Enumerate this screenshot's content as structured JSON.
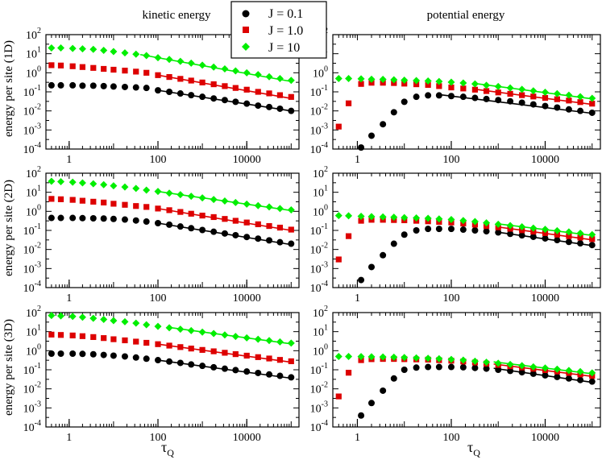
{
  "chart_data": {
    "type": "scatter",
    "layout": "3x2 grid, log-log axes with power-law fit lines",
    "column_titles": [
      "kinetic energy",
      "potential energy"
    ],
    "row_ylabels": [
      "energy per site (1D)",
      "energy per site (2D)",
      "energy per site (3D)"
    ],
    "xlabel": {
      "symbol": "τ",
      "subscript": "Q"
    },
    "x_ticks": [
      1,
      100,
      10000
    ],
    "x_tick_labels": [
      "1",
      "100",
      "10000"
    ],
    "xlim": [
      0.3,
      150000
    ],
    "y_ticks": [
      0.0001,
      0.001,
      0.01,
      0.1,
      1,
      10,
      100
    ],
    "y_tick_labels": [
      {
        "base": "10",
        "exp": "-4"
      },
      {
        "base": "10",
        "exp": "-3"
      },
      {
        "base": "10",
        "exp": "-2"
      },
      {
        "base": "10",
        "exp": "-1"
      },
      {
        "base": "10",
        "exp": "0"
      },
      {
        "base": "10",
        "exp": "1"
      },
      {
        "base": "10",
        "exp": "2"
      }
    ],
    "ylim": [
      0.0001,
      100
    ],
    "legend": {
      "position": "top-center",
      "entries": [
        {
          "label": "J = 0.1",
          "color": "#000000",
          "marker": "circle"
        },
        {
          "label": "J = 1.0",
          "color": "#dd0000",
          "marker": "square"
        },
        {
          "label": "J = 10",
          "color": "#00ee00",
          "marker": "diamond"
        }
      ]
    },
    "x": [
      0.4,
      0.65,
      1.2,
      2,
      3.5,
      6,
      10,
      18,
      32,
      55,
      100,
      180,
      320,
      560,
      1000,
      1800,
      3200,
      5600,
      10000,
      18000,
      32000,
      56000,
      100000
    ],
    "panels": [
      {
        "row": 0,
        "col": 0,
        "series": [
          {
            "name": "J = 0.1",
            "values": [
              0.22,
              0.22,
              0.22,
              0.21,
              0.21,
              0.2,
              0.19,
              0.18,
              0.17,
              0.16,
              0.12,
              0.1,
              0.082,
              0.067,
              0.055,
              0.045,
              0.037,
              0.03,
              0.024,
              0.019,
              0.016,
              0.013,
              0.01
            ],
            "fit": {
              "from": 100,
              "to": 100000,
              "y0": 0.12,
              "y1": 0.01
            }
          },
          {
            "name": "J = 1.0",
            "values": [
              2.5,
              2.4,
              2.2,
              2.0,
              1.8,
              1.6,
              1.45,
              1.3,
              1.15,
              1.0,
              0.75,
              0.6,
              0.48,
              0.39,
              0.31,
              0.25,
              0.2,
              0.16,
              0.13,
              0.1,
              0.083,
              0.067,
              0.054
            ],
            "fit": {
              "from": 100,
              "to": 100000,
              "y0": 0.75,
              "y1": 0.045
            }
          },
          {
            "name": "J = 10",
            "values": [
              20,
              20,
              19,
              18,
              17,
              15,
              13,
              11,
              9.5,
              8,
              6.2,
              5,
              4,
              3.2,
              2.5,
              2.0,
              1.6,
              1.25,
              1.0,
              0.8,
              0.62,
              0.5,
              0.4
            ],
            "fit": {
              "from": 40,
              "to": 100000,
              "y0": 9,
              "y1": 0.35
            }
          }
        ]
      },
      {
        "row": 0,
        "col": 1,
        "series": [
          {
            "name": "J = 0.1",
            "values": [
              null,
              null,
              0.00012,
              0.0005,
              0.002,
              0.0085,
              0.03,
              0.055,
              0.065,
              0.065,
              0.06,
              0.055,
              0.048,
              0.042,
              0.037,
              0.032,
              0.027,
              0.022,
              0.018,
              0.015,
              0.012,
              0.01,
              0.008
            ],
            "fit": {
              "from": 60,
              "to": 100000,
              "y0": 0.07,
              "y1": 0.0075
            }
          },
          {
            "name": "J = 1.0",
            "values": [
              0.0015,
              0.025,
              0.26,
              0.3,
              0.3,
              0.29,
              0.27,
              0.25,
              0.23,
              0.2,
              0.17,
              0.15,
              0.13,
              0.11,
              0.093,
              0.079,
              0.067,
              0.057,
              0.048,
              0.041,
              0.035,
              0.029,
              0.024
            ],
            "fit": {
              "from": 300,
              "to": 100000,
              "y0": 0.14,
              "y1": 0.022
            }
          },
          {
            "name": "J = 10",
            "values": [
              0.5,
              0.5,
              0.48,
              0.46,
              0.45,
              0.43,
              0.41,
              0.39,
              0.37,
              0.35,
              0.32,
              0.29,
              0.26,
              0.22,
              0.19,
              0.16,
              0.135,
              0.113,
              0.095,
              0.08,
              0.067,
              0.056,
              0.046
            ],
            "fit": {
              "from": 300,
              "to": 100000,
              "y0": 0.28,
              "y1": 0.043
            }
          }
        ]
      },
      {
        "row": 1,
        "col": 0,
        "series": [
          {
            "name": "J = 0.1",
            "values": [
              0.45,
              0.45,
              0.45,
              0.44,
              0.43,
              0.42,
              0.4,
              0.37,
              0.33,
              0.29,
              0.24,
              0.2,
              0.16,
              0.13,
              0.105,
              0.085,
              0.069,
              0.056,
              0.045,
              0.037,
              0.03,
              0.024,
              0.02
            ],
            "fit": {
              "from": 100,
              "to": 100000,
              "y0": 0.24,
              "y1": 0.018
            }
          },
          {
            "name": "J = 1.0",
            "values": [
              4.5,
              4.3,
              4.0,
              3.6,
              3.2,
              2.9,
              2.5,
              2.2,
              1.9,
              1.7,
              1.4,
              1.15,
              0.93,
              0.75,
              0.6,
              0.5,
              0.4,
              0.32,
              0.26,
              0.21,
              0.17,
              0.14,
              0.11
            ],
            "fit": {
              "from": 100,
              "to": 100000,
              "y0": 1.4,
              "y1": 0.1
            }
          },
          {
            "name": "J = 10",
            "values": [
              38,
              36,
              34,
              31,
              28,
              25,
              22,
              19,
              16,
              13,
              11,
              9,
              7.5,
              6.2,
              5.1,
              4.2,
              3.5,
              2.9,
              2.4,
              2.0,
              1.7,
              1.4,
              1.2
            ],
            "fit": {
              "from": 100,
              "to": 100000,
              "y0": 11,
              "y1": 1.1
            }
          }
        ]
      },
      {
        "row": 1,
        "col": 1,
        "series": [
          {
            "name": "J = 0.1",
            "values": [
              null,
              null,
              0.00025,
              0.0012,
              0.005,
              0.02,
              0.06,
              0.1,
              0.12,
              0.12,
              0.12,
              0.11,
              0.1,
              0.09,
              0.078,
              0.066,
              0.055,
              0.046,
              0.038,
              0.031,
              0.025,
              0.021,
              0.017
            ],
            "fit": {
              "from": 1000,
              "to": 100000,
              "y0": 0.08,
              "y1": 0.016
            }
          },
          {
            "name": "J = 1.0",
            "values": [
              0.003,
              0.05,
              0.32,
              0.36,
              0.36,
              0.35,
              0.34,
              0.32,
              0.3,
              0.28,
              0.26,
              0.23,
              0.2,
              0.17,
              0.145,
              0.122,
              0.102,
              0.086,
              0.072,
              0.06,
              0.05,
              0.042,
              0.035
            ],
            "fit": {
              "from": 1000,
              "to": 100000,
              "y0": 0.15,
              "y1": 0.032
            }
          },
          {
            "name": "J = 10",
            "values": [
              0.6,
              0.58,
              0.55,
              0.53,
              0.51,
              0.49,
              0.47,
              0.45,
              0.43,
              0.4,
              0.37,
              0.33,
              0.29,
              0.25,
              0.21,
              0.18,
              0.155,
              0.133,
              0.114,
              0.097,
              0.083,
              0.071,
              0.06
            ],
            "fit": {
              "from": 1000,
              "to": 100000,
              "y0": 0.22,
              "y1": 0.055
            }
          }
        ]
      },
      {
        "row": 2,
        "col": 0,
        "series": [
          {
            "name": "J = 0.1",
            "values": [
              0.7,
              0.7,
              0.7,
              0.68,
              0.65,
              0.6,
              0.55,
              0.5,
              0.44,
              0.38,
              0.32,
              0.27,
              0.23,
              0.19,
              0.16,
              0.135,
              0.114,
              0.096,
              0.081,
              0.068,
              0.057,
              0.048,
              0.04
            ],
            "fit": {
              "from": 100,
              "to": 100000,
              "y0": 0.32,
              "y1": 0.036
            }
          },
          {
            "name": "J = 1.0",
            "values": [
              7,
              6.7,
              6.3,
              5.8,
              5.2,
              4.6,
              4.0,
              3.5,
              3.0,
              2.6,
              2.2,
              1.85,
              1.55,
              1.3,
              1.1,
              0.93,
              0.78,
              0.66,
              0.55,
              0.46,
              0.39,
              0.33,
              0.28
            ],
            "fit": {
              "from": 100,
              "to": 100000,
              "y0": 2.2,
              "y1": 0.25
            }
          },
          {
            "name": "J = 10",
            "values": [
              70,
              67,
              63,
              57,
              50,
              44,
              38,
              33,
              28,
              23,
              19,
              16,
              13.5,
              11.3,
              9.5,
              8,
              6.7,
              5.6,
              4.7,
              4.0,
              3.4,
              2.9,
              2.5
            ],
            "fit": {
              "from": 200,
              "to": 100000,
              "y0": 16,
              "y1": 2.3
            }
          }
        ]
      },
      {
        "row": 2,
        "col": 1,
        "series": [
          {
            "name": "J = 0.1",
            "values": [
              null,
              null,
              0.0004,
              0.0018,
              0.008,
              0.035,
              0.1,
              0.13,
              0.14,
              0.14,
              0.14,
              0.135,
              0.125,
              0.115,
              0.1,
              0.087,
              0.074,
              0.062,
              0.051,
              0.042,
              0.035,
              0.029,
              0.024
            ],
            "fit": {
              "from": 800,
              "to": 100000,
              "y0": 0.12,
              "y1": 0.022
            }
          },
          {
            "name": "J = 1.0",
            "values": [
              0.004,
              0.07,
              0.32,
              0.36,
              0.37,
              0.37,
              0.36,
              0.35,
              0.34,
              0.32,
              0.3,
              0.27,
              0.24,
              0.21,
              0.18,
              0.155,
              0.133,
              0.113,
              0.096,
              0.081,
              0.068,
              0.057,
              0.048
            ],
            "fit": {
              "from": 800,
              "to": 100000,
              "y0": 0.2,
              "y1": 0.045
            }
          },
          {
            "name": "J = 10",
            "values": [
              0.5,
              0.5,
              0.49,
              0.48,
              0.47,
              0.46,
              0.44,
              0.42,
              0.4,
              0.38,
              0.35,
              0.32,
              0.28,
              0.25,
              0.22,
              0.19,
              0.165,
              0.143,
              0.124,
              0.107,
              0.092,
              0.08,
              0.069
            ],
            "fit": {
              "from": 800,
              "to": 100000,
              "y0": 0.26,
              "y1": 0.062
            }
          }
        ]
      }
    ]
  }
}
